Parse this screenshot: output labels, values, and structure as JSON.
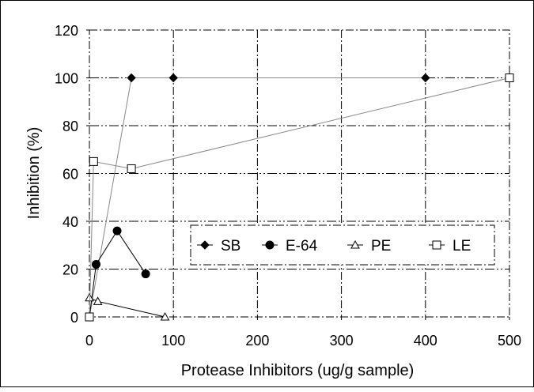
{
  "chart_data": {
    "type": "scatter",
    "title": "",
    "xlabel": "Protease Inhibitors (ug/g sample)",
    "ylabel": "Inhibition (%)",
    "xlim": [
      0,
      500
    ],
    "ylim": [
      0,
      120
    ],
    "x_ticks": [
      "0",
      "100",
      "200",
      "300",
      "400",
      "500"
    ],
    "y_ticks": [
      "0",
      "20",
      "40",
      "60",
      "80",
      "100",
      "120"
    ],
    "grid": true,
    "legend_position": "lower-right",
    "series": [
      {
        "name": "SB",
        "marker": "diamond",
        "color": "#000000",
        "x": [
          0,
          50,
          100,
          400
        ],
        "y": [
          0,
          100,
          100,
          100
        ]
      },
      {
        "name": "E-64",
        "marker": "circle",
        "color": "#000000",
        "x": [
          0,
          8,
          33,
          67
        ],
        "y": [
          0,
          22,
          36,
          18
        ]
      },
      {
        "name": "PE",
        "marker": "triangle-open",
        "color": "#000000",
        "x": [
          0,
          10,
          90
        ],
        "y": [
          8,
          6.5,
          0
        ]
      },
      {
        "name": "LE",
        "marker": "square-open",
        "color": "#000000",
        "x": [
          0,
          5,
          50,
          500
        ],
        "y": [
          0,
          65,
          62,
          100
        ]
      }
    ]
  }
}
